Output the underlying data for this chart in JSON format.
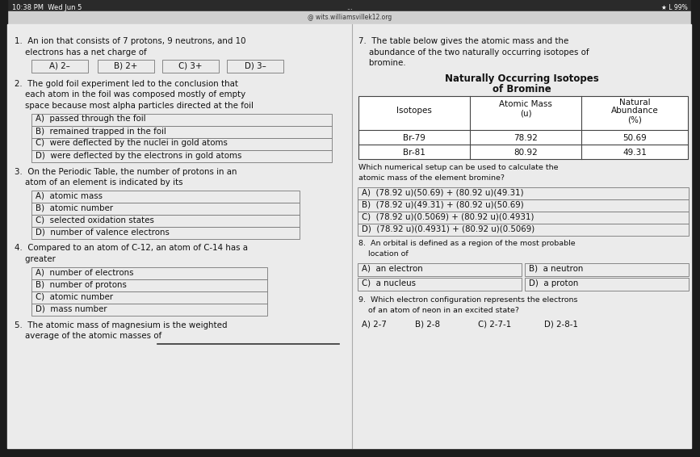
{
  "bg_color": "#1c1c1c",
  "status_bar_text": "10:38 PM  Wed Jun 5",
  "browser_url": "@ wits.williamsvillek12.org",
  "battery_text": "★ L 99%",
  "page_bg": "#ebebeb",
  "browser_bg": "#d5d5d5",
  "text_color": "#111111",
  "box_edge": "#777777",
  "line_color": "#333333",
  "table_line": "#444444",
  "table_bg": "#ffffff",
  "q1_line1": "1.  An ion that consists of 7 protons, 9 neutrons, and 10",
  "q1_line2": "    electrons has a net charge of",
  "q1_choices": [
    "A) 2–",
    "B) 2+",
    "C) 3+",
    "D) 3–"
  ],
  "q2_line1": "2.  The gold foil experiment led to the conclusion that",
  "q2_line2": "    each atom in the foil was composed mostly of empty",
  "q2_line3": "    space because most alpha particles directed at the foil",
  "q2_choices": [
    "A)  passed through the foil",
    "B)  remained trapped in the foil",
    "C)  were deflected by the nuclei in gold atoms",
    "D)  were deflected by the electrons in gold atoms"
  ],
  "q3_line1": "3.  On the Periodic Table, the number of protons in an",
  "q3_line2": "    atom of an element is indicated by its",
  "q3_choices": [
    "A)  atomic mass",
    "B)  atomic number",
    "C)  selected oxidation states",
    "D)  number of valence electrons"
  ],
  "q4_line1": "4.  Compared to an atom of C-12, an atom of C-14 has a",
  "q4_line2": "    greater",
  "q4_choices": [
    "A)  number of electrons",
    "B)  number of protons",
    "C)  atomic number",
    "D)  mass number"
  ],
  "q5_line1": "5.  The atomic mass of magnesium is the weighted",
  "q5_line2": "    average of the atomic masses of",
  "q7_line1": "7.  The table below gives the atomic mass and the",
  "q7_line2": "    abundance of the two naturally occurring isotopes of",
  "q7_line3": "    bromine.",
  "table_title1": "Naturally Occurring Isotopes",
  "table_title2": "of Bromine",
  "col_headers": [
    "Isotopes",
    "Atomic Mass\n(u)",
    "Natural\nAbundance\n(%)"
  ],
  "row1": [
    "Br-79",
    "78.92",
    "50.69"
  ],
  "row2": [
    "Br-81",
    "80.92",
    "49.31"
  ],
  "q7b_line1": "Which numerical setup can be used to calculate the",
  "q7b_line2": "atomic mass of the element bromine?",
  "q7_choices": [
    "A)  (78.92 u)(50.69) + (80.92 u)(49.31)",
    "B)  (78.92 u)(49.31) + (80.92 u)(50.69)",
    "C)  (78.92 u)(0.5069) + (80.92 u)(0.4931)",
    "D)  (78.92 u)(0.4931) + (80.92 u)(0.5069)"
  ],
  "q8_line1": "8.  An orbital is defined as a region of the most probable",
  "q8_line2": "    location of",
  "q8_choices_left": [
    "A)  an electron",
    "C)  a nucleus"
  ],
  "q8_choices_right": [
    "B)  a neutron",
    "D)  a proton"
  ],
  "q9_line1": "9.  Which electron configuration represents the electrons",
  "q9_line2": "    of an atom of neon in an excited state?",
  "q9_choices": [
    "A) 2-7",
    "B) 2-8",
    "C) 2-7-1",
    "D) 2-8-1"
  ]
}
